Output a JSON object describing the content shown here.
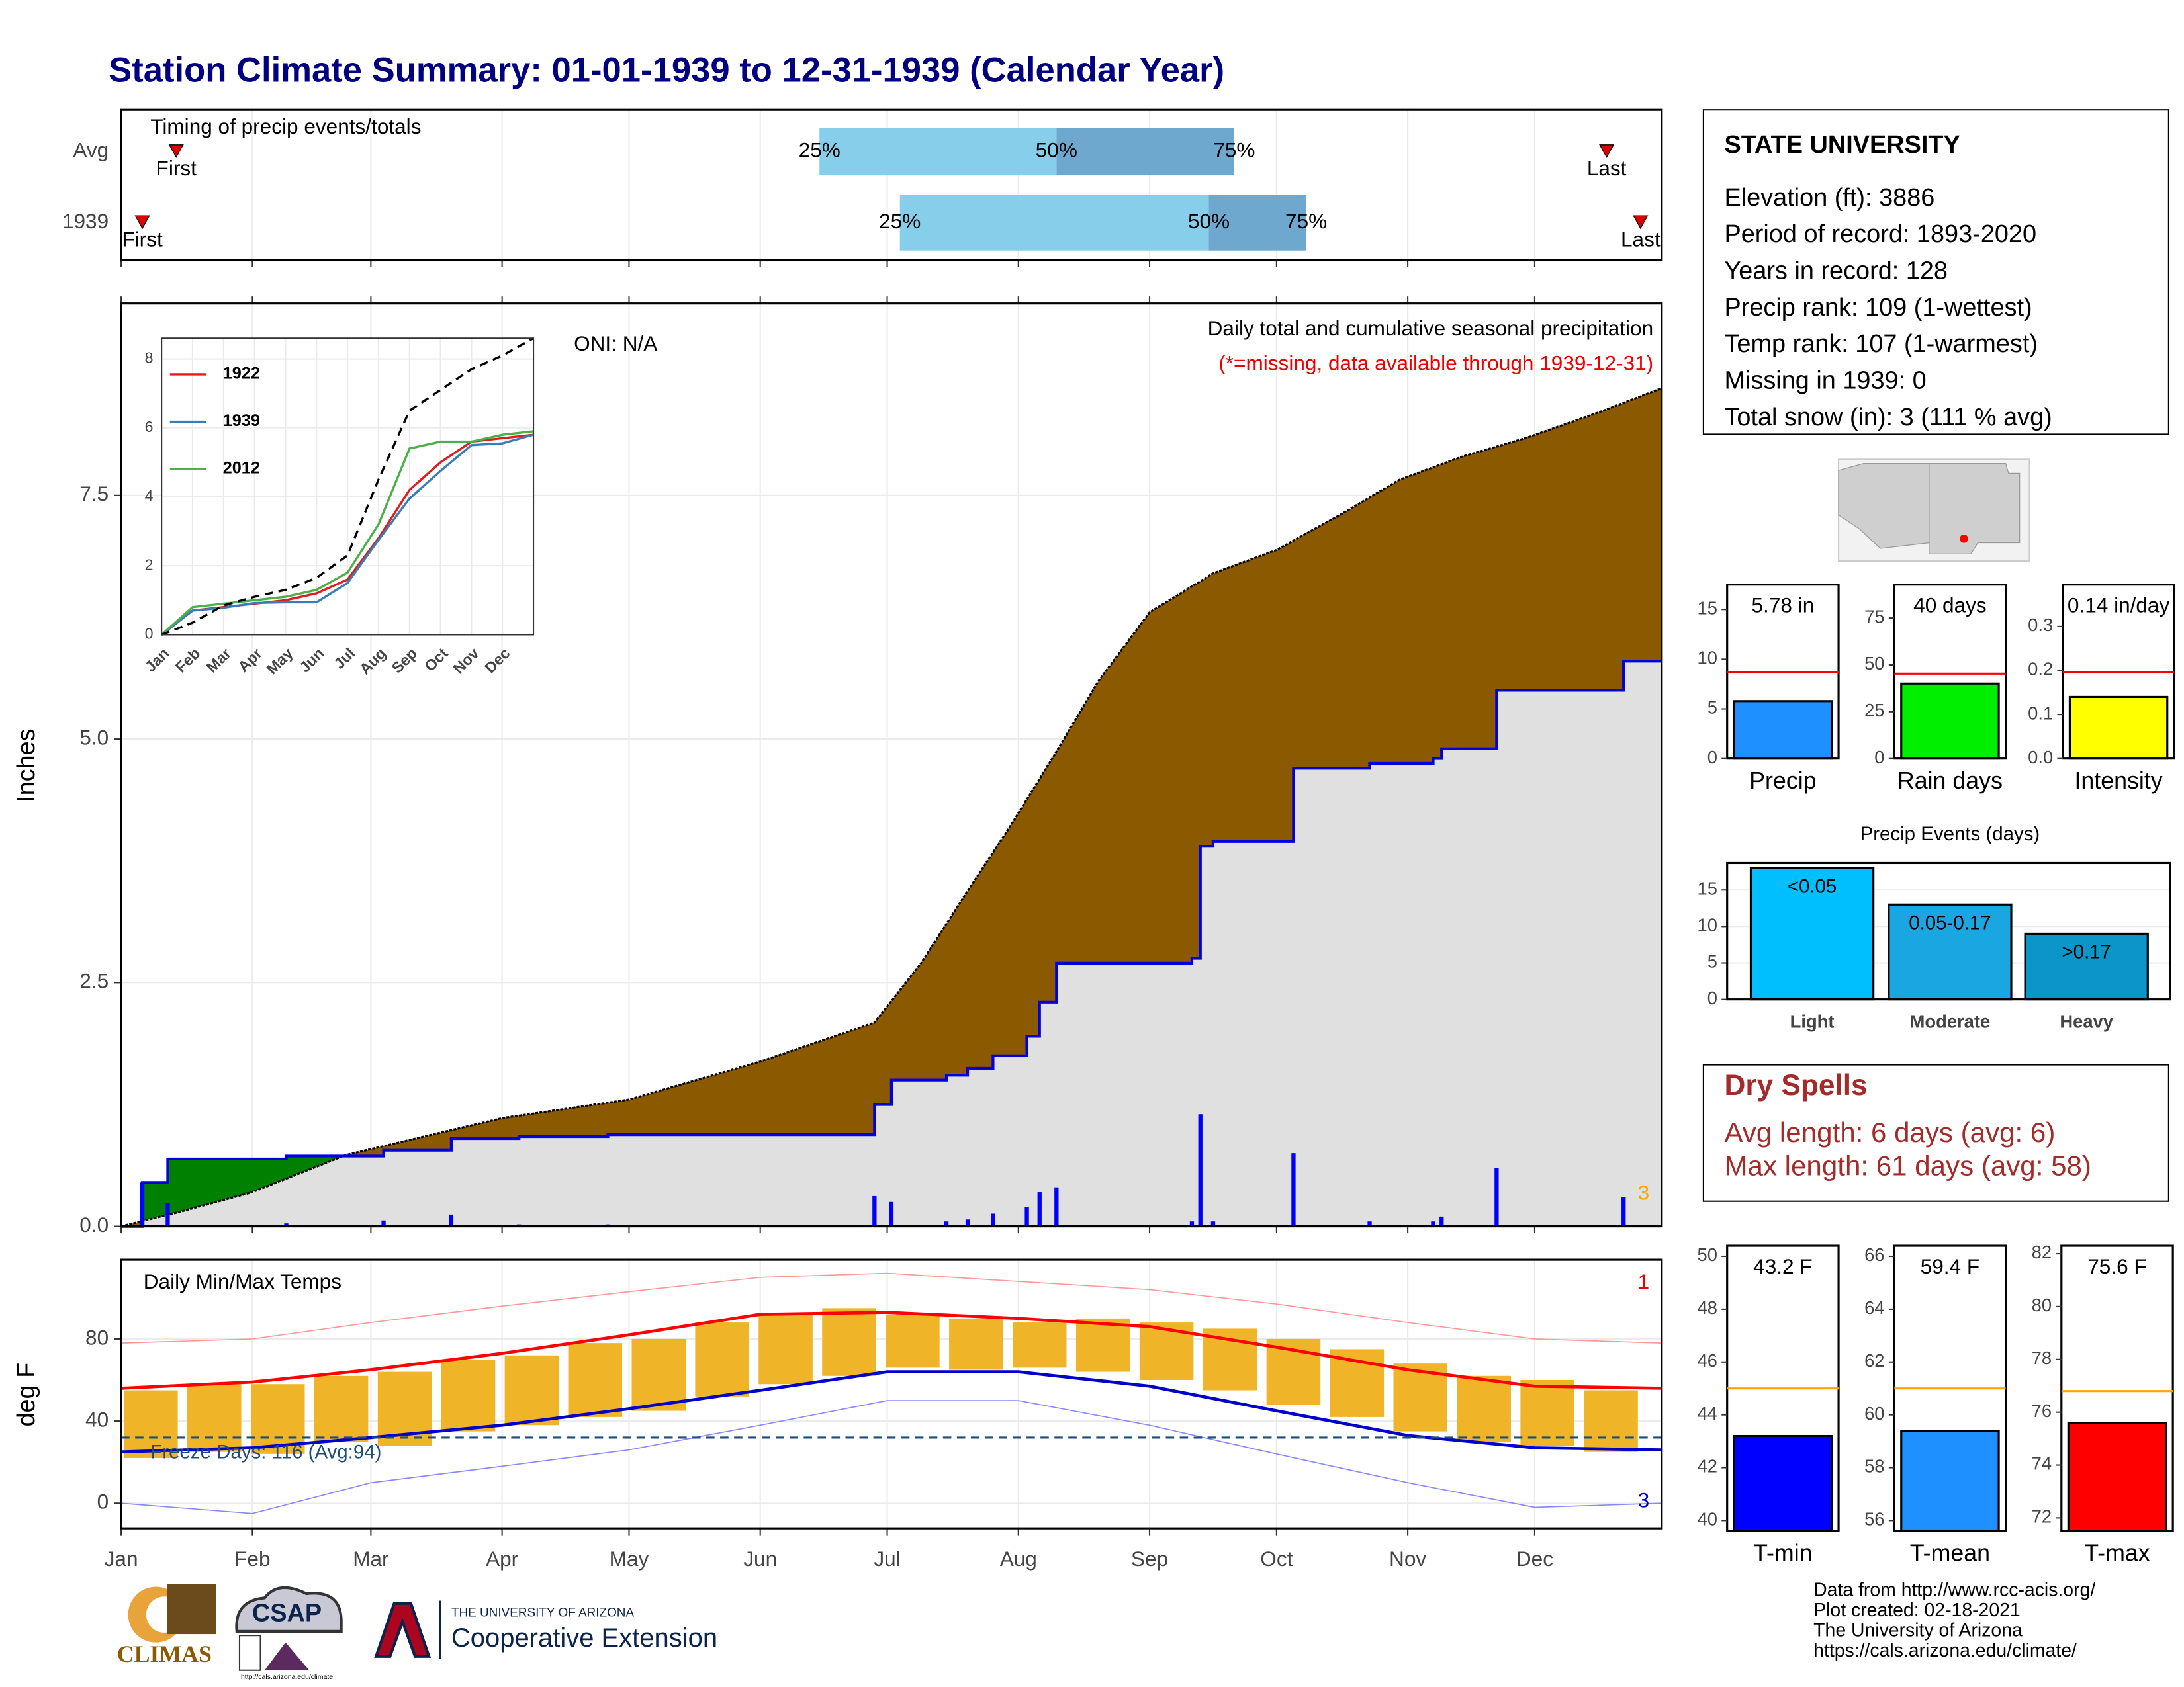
{
  "title": "Station Climate Summary: 01-01-1939 to 12-31-1939 (Calendar Year)",
  "chart_data": [
    {
      "type": "timing",
      "title": "Timing of precip events/totals",
      "categories": [
        "Avg",
        "1939"
      ],
      "first": [
        14,
        6
      ],
      "q25": [
        166,
        185
      ],
      "q50": [
        222,
        258
      ],
      "q75": [
        264,
        281
      ],
      "last": [
        352,
        360
      ],
      "first_label": "First",
      "last_label": "Last",
      "q_labels": [
        "25%",
        "50%",
        "75%"
      ],
      "colors": [
        "#87ceeb",
        "#6fa8cf"
      ],
      "marker_color": "#dd0000",
      "xlim": [
        1,
        365
      ]
    },
    {
      "type": "area",
      "title": "Daily total and cumulative seasonal precipitation",
      "subtitle": "(*=missing, data available through 1939-12-31)",
      "annotation": "ONI: N/A",
      "count_label": "3",
      "ylabel": "Inches",
      "xlim": [
        1,
        365
      ],
      "ylim": [
        0,
        9.47
      ],
      "yticks": [
        {
          "value": 0,
          "label": "0.0"
        },
        {
          "value": 2.5,
          "label": "2.5"
        },
        {
          "value": 5,
          "label": "5.0"
        },
        {
          "value": 7.5,
          "label": "7.5"
        }
      ],
      "average": {
        "color": "#000000",
        "fill": "#8b5a00",
        "x": [
          1,
          15,
          32,
          54,
          91,
          121,
          152,
          179,
          190,
          201,
          211,
          221,
          232,
          244,
          259,
          274,
          289,
          303,
          318,
          333,
          350,
          365
        ],
        "values": [
          0,
          0.15,
          0.35,
          0.73,
          1.11,
          1.3,
          1.69,
          2.09,
          2.7,
          3.44,
          4.1,
          4.8,
          5.6,
          6.3,
          6.7,
          6.94,
          7.3,
          7.66,
          7.9,
          8.09,
          8.35,
          8.6
        ]
      },
      "observed": {
        "color": "#0000dd",
        "fill": "#e0e0e0",
        "above_fill": "#008000",
        "x": [
          1,
          6,
          6,
          12,
          12,
          40,
          40,
          63,
          63,
          79,
          79,
          95,
          95,
          116,
          116,
          179,
          179,
          183,
          183,
          196,
          196,
          201,
          201,
          207,
          207,
          215,
          215,
          218,
          218,
          222,
          222,
          254,
          254,
          256,
          256,
          259,
          259,
          278,
          278,
          296,
          296,
          311,
          311,
          313,
          313,
          326,
          326,
          356,
          356,
          365
        ],
        "values": [
          0,
          0,
          0.45,
          0.45,
          0.69,
          0.69,
          0.72,
          0.72,
          0.78,
          0.78,
          0.9,
          0.9,
          0.92,
          0.92,
          0.94,
          0.94,
          1.25,
          1.25,
          1.5,
          1.5,
          1.55,
          1.55,
          1.62,
          1.62,
          1.75,
          1.75,
          1.95,
          1.95,
          2.3,
          2.3,
          2.7,
          2.7,
          2.75,
          2.75,
          3.9,
          3.9,
          3.95,
          3.95,
          4.7,
          4.7,
          4.75,
          4.75,
          4.8,
          4.8,
          4.9,
          4.9,
          5.5,
          5.5,
          5.8,
          5.8
        ]
      },
      "daily": {
        "color": "#0000ff",
        "x": [
          6,
          12,
          40,
          63,
          79,
          95,
          116,
          179,
          183,
          196,
          201,
          207,
          215,
          218,
          222,
          254,
          256,
          259,
          278,
          296,
          311,
          313,
          326,
          356
        ],
        "values": [
          0.45,
          0.24,
          0.03,
          0.06,
          0.12,
          0.02,
          0.02,
          0.31,
          0.25,
          0.05,
          0.07,
          0.13,
          0.2,
          0.35,
          0.4,
          0.05,
          1.15,
          0.05,
          0.75,
          0.05,
          0.05,
          0.1,
          0.6,
          0.3
        ]
      }
    },
    {
      "type": "range",
      "title": "Daily Min/Max Temps",
      "ylabel": "deg F",
      "xlim": [
        1,
        365
      ],
      "ylim": [
        -12.2,
        118.6
      ],
      "xticks": [
        {
          "value": 1,
          "label": "Jan"
        },
        {
          "value": 32,
          "label": "Feb"
        },
        {
          "value": 60,
          "label": "Mar"
        },
        {
          "value": 91,
          "label": "Apr"
        },
        {
          "value": 121,
          "label": "May"
        },
        {
          "value": 152,
          "label": "Jun"
        },
        {
          "value": 182,
          "label": "Jul"
        },
        {
          "value": 213,
          "label": "Aug"
        },
        {
          "value": 244,
          "label": "Sep"
        },
        {
          "value": 274,
          "label": "Oct"
        },
        {
          "value": 305,
          "label": "Nov"
        },
        {
          "value": 335,
          "label": "Dec"
        }
      ],
      "yticks": [
        0,
        40,
        80
      ],
      "freeze_line": 32,
      "freeze_label": "Freeze Days: 116 (Avg:94)",
      "high_count": "1",
      "low_count": "3",
      "bars": {
        "color": "#f0b429",
        "x": [
          8,
          23,
          38,
          53,
          68,
          83,
          98,
          113,
          128,
          143,
          158,
          173,
          188,
          203,
          218,
          233,
          248,
          263,
          278,
          293,
          308,
          323,
          338,
          353
        ],
        "low": [
          22,
          25,
          24,
          30,
          28,
          35,
          38,
          42,
          45,
          52,
          58,
          62,
          66,
          65,
          66,
          64,
          60,
          55,
          48,
          42,
          35,
          30,
          28,
          25
        ],
        "high": [
          55,
          58,
          58,
          62,
          64,
          70,
          72,
          78,
          80,
          88,
          92,
          95,
          92,
          90,
          88,
          90,
          88,
          85,
          80,
          75,
          68,
          62,
          60,
          55
        ]
      },
      "lines_x": [
        1,
        32,
        60,
        91,
        121,
        152,
        182,
        213,
        244,
        274,
        305,
        335,
        365
      ],
      "lines": [
        {
          "color": "#ff9999",
          "width": 0.8,
          "values": [
            78,
            80,
            88,
            96,
            103,
            110,
            112,
            108,
            104,
            97,
            88,
            80,
            78
          ]
        },
        {
          "color": "#ff0000",
          "width": 2.2,
          "values": [
            56,
            59,
            65,
            73,
            82,
            92,
            93,
            90,
            86,
            76,
            65,
            57,
            56
          ]
        },
        {
          "color": "#0000cc",
          "width": 2.2,
          "values": [
            25,
            27,
            32,
            38,
            46,
            55,
            64,
            64,
            57,
            45,
            33,
            27,
            26
          ]
        },
        {
          "color": "#8888ff",
          "width": 0.8,
          "values": [
            0,
            -5,
            10,
            18,
            26,
            38,
            50,
            50,
            38,
            24,
            10,
            -2,
            0
          ]
        }
      ]
    },
    {
      "type": "line",
      "xlim": [
        0,
        12
      ],
      "ylim": [
        0,
        8.6
      ],
      "yticks": [
        0,
        2,
        4,
        6,
        8
      ],
      "xticks": [
        {
          "value": 0,
          "label": "Jan"
        },
        {
          "value": 1,
          "label": "Feb"
        },
        {
          "value": 2,
          "label": "Mar"
        },
        {
          "value": 3,
          "label": "Apr"
        },
        {
          "value": 4,
          "label": "May"
        },
        {
          "value": 5,
          "label": "Jun"
        },
        {
          "value": 6,
          "label": "Jul"
        },
        {
          "value": 7,
          "label": "Aug"
        },
        {
          "value": 8,
          "label": "Sep"
        },
        {
          "value": 9,
          "label": "Oct"
        },
        {
          "value": 10,
          "label": "Nov"
        },
        {
          "value": 11,
          "label": "Dec"
        }
      ],
      "x": [
        0,
        1,
        2,
        3,
        4,
        5,
        6,
        7,
        8,
        9,
        10,
        11,
        12
      ],
      "series": [
        {
          "name": "1922",
          "color": "#e41a1c",
          "values": [
            0,
            0.7,
            0.8,
            0.9,
            1.0,
            1.2,
            1.6,
            2.8,
            4.2,
            5.0,
            5.6,
            5.7,
            5.8
          ]
        },
        {
          "name": "1939",
          "color": "#377eb8",
          "values": [
            0,
            0.7,
            0.78,
            0.92,
            0.94,
            0.94,
            1.5,
            2.75,
            3.95,
            4.75,
            5.5,
            5.55,
            5.8
          ]
        },
        {
          "name": "2012",
          "color": "#4daf4a",
          "values": [
            0,
            0.8,
            0.9,
            1.0,
            1.1,
            1.3,
            1.8,
            3.2,
            5.4,
            5.6,
            5.6,
            5.8,
            5.9
          ]
        }
      ],
      "average": {
        "color": "#000000",
        "values": [
          0,
          0.35,
          0.85,
          1.1,
          1.3,
          1.65,
          2.3,
          4.5,
          6.5,
          7.1,
          7.7,
          8.1,
          8.6
        ]
      }
    },
    {
      "type": "bar",
      "categories": [
        "Precip"
      ],
      "values": [
        5.78
      ],
      "value_labels": [
        "5.78 in"
      ],
      "color": "#1e90ff",
      "average": 8.7,
      "average_color": "#ff0000",
      "ylim": [
        0,
        17.5
      ],
      "yticks": [
        0,
        5,
        10,
        15
      ]
    },
    {
      "type": "bar",
      "categories": [
        "Rain days"
      ],
      "values": [
        40
      ],
      "value_labels": [
        "40 days"
      ],
      "color": "#00ee00",
      "average": 45.3,
      "average_color": "#ff0000",
      "ylim": [
        0,
        92.8
      ],
      "yticks": [
        0,
        25,
        50,
        75
      ]
    },
    {
      "type": "bar",
      "categories": [
        "Intensity"
      ],
      "values": [
        0.14
      ],
      "value_labels": [
        "0.14 in/day"
      ],
      "color": "#ffff00",
      "average": 0.196,
      "average_color": "#ff0000",
      "ylim": [
        0,
        0.395
      ],
      "yticks": [
        {
          "value": 0,
          "label": "0.0"
        },
        0.1,
        0.2,
        0.3
      ]
    },
    {
      "type": "events",
      "title": "Precip Events (days)",
      "categories": [
        "Light",
        "Moderate",
        "Heavy"
      ],
      "values": [
        18,
        13,
        9
      ],
      "bin_labels": [
        "<0.05",
        "0.05-0.17",
        ">0.17"
      ],
      "colors": [
        "#00bfff",
        "#1aa6e0",
        "#0b95c8"
      ],
      "ylim": [
        0,
        18.7
      ],
      "yticks": [
        0,
        5,
        10,
        15
      ]
    },
    {
      "type": "bar",
      "categories": [
        "T-min"
      ],
      "values": [
        43.2
      ],
      "value_labels": [
        "43.2 F"
      ],
      "color": "#0000ff",
      "average": 45.0,
      "average_color": "#ffa500",
      "ylim": [
        39.6,
        50.4
      ],
      "yticks": [
        40,
        42,
        44,
        46,
        48,
        50
      ]
    },
    {
      "type": "bar",
      "categories": [
        "T-mean"
      ],
      "values": [
        59.4
      ],
      "value_labels": [
        "59.4 F"
      ],
      "color": "#1e90ff",
      "average": 61.0,
      "average_color": "#ffa500",
      "ylim": [
        55.6,
        66.4
      ],
      "yticks": [
        56,
        58,
        60,
        62,
        64,
        66
      ]
    },
    {
      "type": "bar",
      "categories": [
        "T-max"
      ],
      "values": [
        75.6
      ],
      "value_labels": [
        "75.6 F"
      ],
      "color": "#ff0000",
      "average": 76.8,
      "average_color": "#ffa500",
      "ylim": [
        71.5,
        82.3
      ],
      "yticks": [
        72,
        74,
        76,
        78,
        80,
        82
      ]
    }
  ],
  "station": {
    "name": "STATE UNIVERSITY",
    "lines": [
      "Elevation (ft): 3886",
      "Period of record: 1893-2020",
      "Years in record: 128",
      "Precip rank: 109 (1-wettest)",
      "Temp rank: 107 (1-warmest)",
      "Missing in 1939: 0",
      "Total snow (in): 3 (111 % avg)"
    ]
  },
  "dry_spells": {
    "title": "Dry Spells",
    "lines": [
      "Avg length: 6 days (avg: 6)",
      "Max length: 61 days (avg: 58)"
    ]
  },
  "footer": {
    "lines": [
      "Data from http://www.rcc-acis.org/",
      "Plot created: 02-18-2021",
      "The University of Arizona",
      "https://cals.arizona.edu/climate/"
    ]
  },
  "logos": {
    "climas": "CLIMAS",
    "csap": "CSAP",
    "csap_url": "http://cals.arizona.edu/climate",
    "ua": "THE UNIVERSITY OF ARIZONA",
    "coop": "Cooperative Extension"
  }
}
